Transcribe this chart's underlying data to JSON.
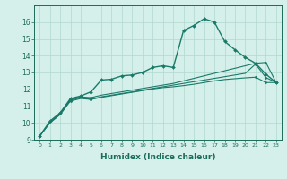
{
  "x": [
    0,
    1,
    2,
    3,
    4,
    5,
    6,
    7,
    8,
    9,
    10,
    11,
    12,
    13,
    14,
    15,
    16,
    17,
    18,
    19,
    20,
    21,
    22,
    23
  ],
  "lines": [
    {
      "y": [
        9.2,
        10.1,
        10.6,
        11.45,
        11.6,
        11.85,
        12.55,
        12.6,
        12.8,
        12.85,
        13.0,
        13.3,
        13.4,
        13.3,
        15.5,
        15.8,
        16.2,
        16.0,
        14.85,
        14.35,
        13.9,
        13.55,
        12.9,
        12.4
      ],
      "color": "#1a7a6a",
      "marker": "D",
      "markersize": 2.0,
      "linewidth": 1.0,
      "markevery": 1
    },
    {
      "y": [
        9.2,
        10.05,
        10.55,
        11.4,
        11.55,
        11.5,
        11.65,
        11.75,
        11.85,
        11.95,
        12.05,
        12.15,
        12.25,
        12.35,
        12.5,
        12.65,
        12.8,
        12.95,
        13.1,
        13.25,
        13.4,
        13.55,
        13.6,
        12.4
      ],
      "color": "#1a7a6a",
      "marker": "D",
      "markersize": 1.5,
      "linewidth": 0.8,
      "markevery": [
        0,
        3,
        5,
        21,
        22,
        23
      ]
    },
    {
      "y": [
        9.2,
        10.0,
        10.5,
        11.35,
        11.5,
        11.4,
        11.55,
        11.65,
        11.75,
        11.85,
        11.95,
        12.05,
        12.15,
        12.25,
        12.35,
        12.45,
        12.55,
        12.65,
        12.75,
        12.85,
        12.95,
        13.5,
        12.7,
        12.4
      ],
      "color": "#1a7a6a",
      "marker": "D",
      "markersize": 1.5,
      "linewidth": 0.8,
      "markevery": [
        0,
        3,
        5,
        21,
        22,
        23
      ]
    },
    {
      "y": [
        9.2,
        10.0,
        10.5,
        11.3,
        11.45,
        11.4,
        11.52,
        11.62,
        11.72,
        11.82,
        11.92,
        12.02,
        12.1,
        12.15,
        12.22,
        12.3,
        12.4,
        12.5,
        12.58,
        12.63,
        12.68,
        12.72,
        12.4,
        12.4
      ],
      "color": "#1a7a6a",
      "marker": "D",
      "markersize": 1.5,
      "linewidth": 0.8,
      "markevery": [
        0,
        3,
        5,
        21,
        22,
        23
      ]
    }
  ],
  "xlabel": "Humidex (Indice chaleur)",
  "ylim": [
    9,
    17
  ],
  "xlim": [
    -0.5,
    23.5
  ],
  "yticks": [
    9,
    10,
    11,
    12,
    13,
    14,
    15,
    16
  ],
  "xticks": [
    0,
    1,
    2,
    3,
    4,
    5,
    6,
    7,
    8,
    9,
    10,
    11,
    12,
    13,
    14,
    15,
    16,
    17,
    18,
    19,
    20,
    21,
    22,
    23
  ],
  "xtick_labels": [
    "0",
    "1",
    "2",
    "3",
    "4",
    "5",
    "6",
    "7",
    "8",
    "9",
    "10",
    "11",
    "12",
    "13",
    "14",
    "15",
    "16",
    "17",
    "18",
    "19",
    "20",
    "21",
    "22",
    "23"
  ],
  "background_color": "#d5f0ea",
  "grid_color": "#b0d8d0",
  "line_color": "#1a6b5a",
  "xlabel_fontsize": 6.5,
  "xtick_fontsize": 4.5,
  "ytick_fontsize": 5.5
}
